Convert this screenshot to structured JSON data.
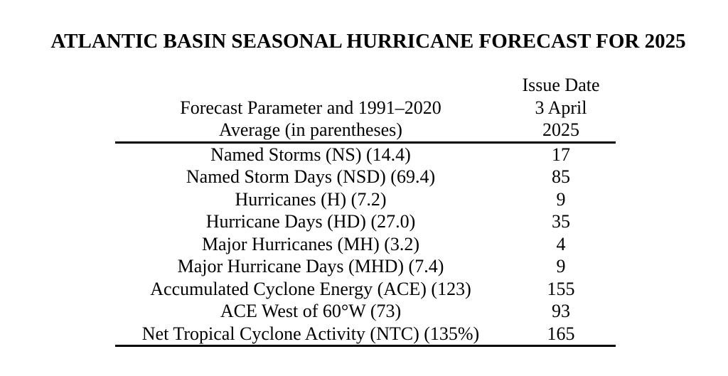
{
  "title": "ATLANTIC BASIN SEASONAL HURRICANE FORECAST FOR 2025",
  "table": {
    "header": {
      "param_line1": "Forecast Parameter and 1991–2020",
      "param_line2": "Average (in parentheses)",
      "issue_line1": "Issue Date",
      "issue_line2": "3 April",
      "issue_line3": "2025"
    },
    "rows": [
      {
        "parameter": "Named Storms (NS) (14.4)",
        "value": "17"
      },
      {
        "parameter": "Named Storm Days (NSD) (69.4)",
        "value": "85"
      },
      {
        "parameter": "Hurricanes (H) (7.2)",
        "value": "9"
      },
      {
        "parameter": "Hurricane Days (HD) (27.0)",
        "value": "35"
      },
      {
        "parameter": "Major Hurricanes (MH) (3.2)",
        "value": "4"
      },
      {
        "parameter": "Major Hurricane Days (MHD) (7.4)",
        "value": "9"
      },
      {
        "parameter": "Accumulated Cyclone Energy (ACE) (123)",
        "value": "155"
      },
      {
        "parameter": "ACE West of 60°W (73)",
        "value": "93"
      },
      {
        "parameter": "Net Tropical Cyclone Activity (NTC) (135%)",
        "value": "165"
      }
    ]
  },
  "colors": {
    "text": "#000000",
    "background": "#ffffff",
    "rule": "#000000"
  }
}
